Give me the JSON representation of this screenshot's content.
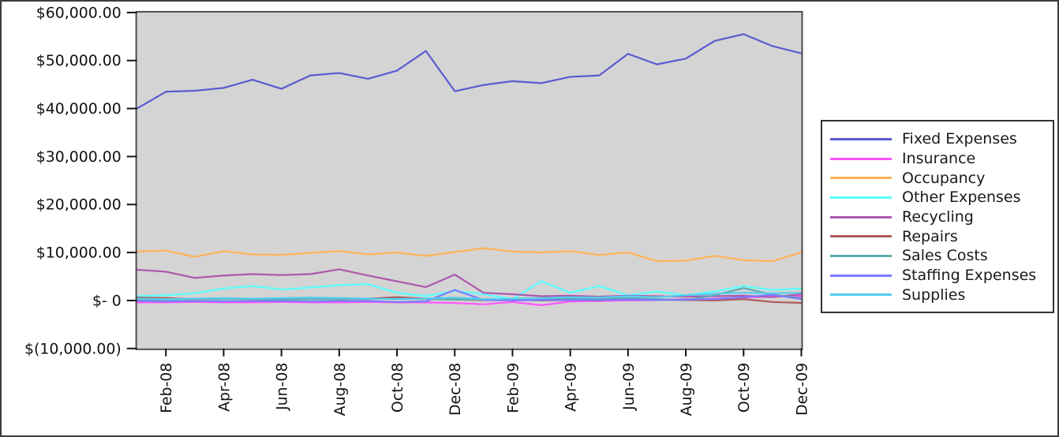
{
  "window": {
    "background": "#ffffff",
    "border_color": "#3c3c3c"
  },
  "chart_data": {
    "type": "line",
    "title": "",
    "xlabel": "",
    "ylabel": "",
    "grid": false,
    "legend_position": "right",
    "plot_background": "#d4d4d4",
    "plot_border_color": "#4b4b4b",
    "axis_color": "#111111",
    "ylim": [
      -10000,
      60000
    ],
    "ytick_values": [
      60000,
      50000,
      40000,
      30000,
      20000,
      10000,
      0,
      -10000
    ],
    "ytick_labels": [
      "$60,000.00",
      "$50,000.00",
      "$40,000.00",
      "$30,000.00",
      "$20,000.00",
      "$10,000.00",
      "$- 0",
      "$(10,000.00)"
    ],
    "xtick_indices": [
      1,
      3,
      5,
      7,
      9,
      11,
      13,
      15,
      17,
      19,
      21,
      23
    ],
    "xtick_labels": [
      "Feb-08",
      "Apr-08",
      "Jun-08",
      "Aug-08",
      "Oct-08",
      "Dec-08",
      "Feb-09",
      "Apr-09",
      "Jun-09",
      "Aug-09",
      "Oct-09",
      "Dec-09"
    ],
    "categories": [
      "Jan-08",
      "Feb-08",
      "Mar-08",
      "Apr-08",
      "May-08",
      "Jun-08",
      "Jul-08",
      "Aug-08",
      "Sep-08",
      "Oct-08",
      "Nov-08",
      "Dec-08",
      "Jan-09",
      "Feb-09",
      "Mar-09",
      "Apr-09",
      "May-09",
      "Jun-09",
      "Jul-09",
      "Aug-09",
      "Sep-09",
      "Oct-09",
      "Nov-09",
      "Dec-09"
    ],
    "series": [
      {
        "name": "Fixed Expenses",
        "color": "#5a5ad0",
        "values": [
          40000,
          43500,
          43700,
          44300,
          46000,
          44100,
          46900,
          47400,
          46200,
          47900,
          52000,
          43600,
          44900,
          45700,
          45300,
          46600,
          46900,
          51400,
          49200,
          50400,
          54100,
          55500,
          53000,
          51500
        ]
      },
      {
        "name": "Insurance",
        "color": "#ff55ff",
        "values": [
          -400,
          -400,
          -300,
          -400,
          -400,
          -300,
          -400,
          -400,
          -300,
          -400,
          -400,
          -500,
          -800,
          -300,
          -1000,
          -200,
          -100,
          0,
          100,
          300,
          400,
          600,
          800,
          900
        ]
      },
      {
        "name": "Occupancy",
        "color": "#ffb257",
        "values": [
          10200,
          10400,
          9100,
          10300,
          9600,
          9500,
          9900,
          10300,
          9600,
          10000,
          9300,
          10100,
          10900,
          10200,
          10000,
          10300,
          9500,
          10000,
          8200,
          8300,
          9300,
          8400,
          8200,
          10000
        ]
      },
      {
        "name": "Other Expenses",
        "color": "#59ffff",
        "values": [
          900,
          1100,
          1500,
          2500,
          3000,
          2300,
          2700,
          3200,
          3400,
          1600,
          900,
          2000,
          1300,
          300,
          4000,
          1600,
          3000,
          1100,
          1900,
          1100,
          1900,
          3000,
          2200,
          2500
        ]
      },
      {
        "name": "Recycling",
        "color": "#ad57ad",
        "values": [
          6400,
          6000,
          4700,
          5200,
          5500,
          5300,
          5500,
          6500,
          5200,
          4000,
          2800,
          5400,
          1600,
          1300,
          900,
          1000,
          800,
          1000,
          900,
          800,
          900,
          1000,
          700,
          1300
        ]
      },
      {
        "name": "Repairs",
        "color": "#ad5a5a",
        "values": [
          600,
          500,
          300,
          400,
          300,
          300,
          400,
          300,
          400,
          700,
          400,
          200,
          100,
          200,
          0,
          100,
          0,
          300,
          200,
          100,
          0,
          300,
          -300,
          -500
        ]
      },
      {
        "name": "Sales Costs",
        "color": "#5aadad",
        "values": [
          200,
          200,
          300,
          300,
          300,
          200,
          300,
          300,
          300,
          400,
          300,
          200,
          200,
          300,
          300,
          400,
          300,
          500,
          300,
          100,
          1100,
          2600,
          1200,
          500
        ]
      },
      {
        "name": "Staffing Expenses",
        "color": "#7b7bff",
        "values": [
          -100,
          -200,
          -100,
          -200,
          -100,
          -100,
          -200,
          -100,
          -100,
          -300,
          -200,
          2200,
          100,
          0,
          100,
          100,
          100,
          200,
          100,
          200,
          300,
          700,
          1200,
          300
        ]
      },
      {
        "name": "Supplies",
        "color": "#55ccee",
        "values": [
          400,
          300,
          400,
          500,
          400,
          500,
          600,
          500,
          400,
          300,
          400,
          600,
          300,
          400,
          500,
          700,
          600,
          900,
          700,
          1100,
          1400,
          1600,
          1500,
          1600
        ]
      }
    ]
  }
}
